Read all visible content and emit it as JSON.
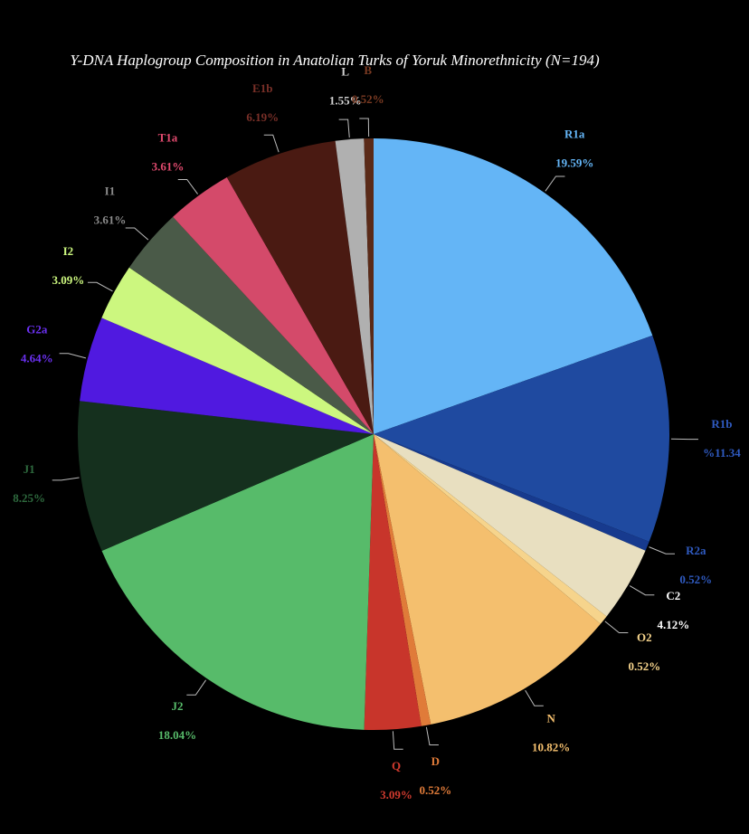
{
  "chart_data": {
    "type": "pie",
    "title": "Y-DNA Haplogroup Composition in Anatolian Turks of Yoruk Minorethnicity (N=194)",
    "categories": [
      "R1a",
      "R1b",
      "R2a",
      "C2",
      "O2",
      "N",
      "D",
      "Q",
      "J2",
      "J1",
      "G2a",
      "I2",
      "I1",
      "T1a",
      "E1b",
      "L",
      "B"
    ],
    "values": [
      19.59,
      11.34,
      0.52,
      4.12,
      0.52,
      10.82,
      0.52,
      3.09,
      18.04,
      8.25,
      4.64,
      3.09,
      3.61,
      3.61,
      6.19,
      1.55,
      0.52
    ],
    "value_labels": [
      "19.59%",
      "%11.34",
      "0.52%",
      "4.12%",
      "0.52%",
      "10.82%",
      "0.52%",
      "3.09%",
      "18.04%",
      "8.25%",
      "4.64%",
      "3.09%",
      "3.61%",
      "3.61%",
      "6.19%",
      "1.55%",
      "0.52%"
    ],
    "colors": [
      "#64b5f6",
      "#1f4aa0",
      "#173a8e",
      "#e8dfc0",
      "#f6d48c",
      "#f4bf6e",
      "#e07b39",
      "#c8352b",
      "#57bb6a",
      "#15301e",
      "#5019e0",
      "#ccf77f",
      "#4a5a48",
      "#d44a6a",
      "#4a1a12",
      "#b0b0b0",
      "#5a2a18"
    ],
    "label_colors": [
      "#64b5f6",
      "#2f5ac0",
      "#2f5ac0",
      "#ffffff",
      "#f6d48c",
      "#f4bf6e",
      "#e07b39",
      "#d03a2e",
      "#57bb6a",
      "#2e6a3e",
      "#6a30f0",
      "#ccf77f",
      "#8a8a8a",
      "#e04a6e",
      "#7a3028",
      "#d0d0d0",
      "#7a3a22"
    ]
  }
}
